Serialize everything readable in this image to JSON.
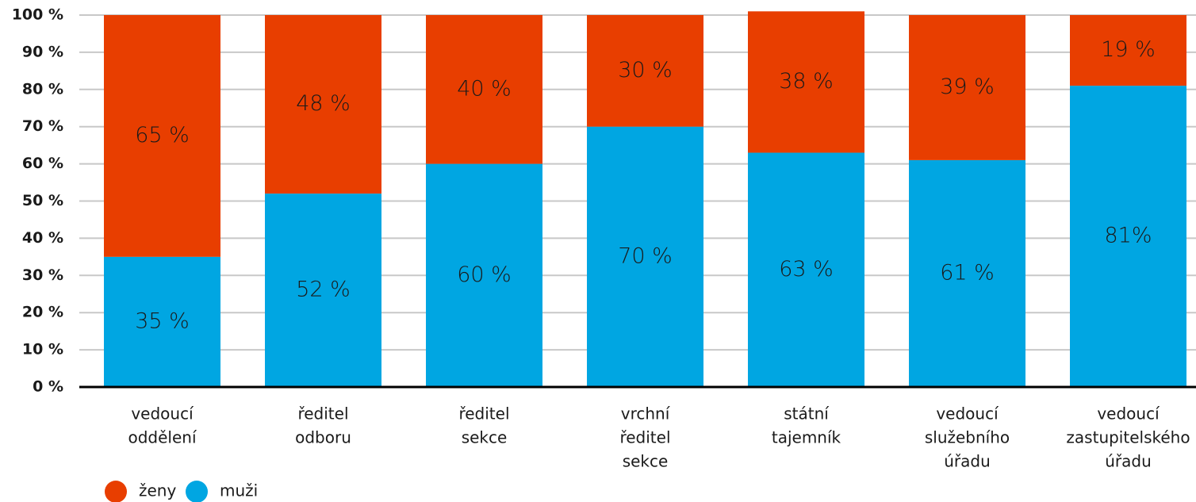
{
  "chart_data": {
    "type": "stacked_bar",
    "categories": [
      [
        "vedoucí",
        "oddělení"
      ],
      [
        "ředitel",
        "odboru"
      ],
      [
        "ředitel",
        "sekce"
      ],
      [
        "vrchní",
        "ředitel",
        "sekce"
      ],
      [
        "státní",
        "tajemník"
      ],
      [
        "vedoucí",
        "služebního",
        "úřadu"
      ],
      [
        "vedoucí",
        "zastupitelského",
        "úřadu"
      ]
    ],
    "series": [
      {
        "name": "muži",
        "color": "#00a6e2",
        "values": [
          35,
          52,
          60,
          70,
          63,
          61,
          81
        ],
        "value_labels": [
          "35 %",
          "52 %",
          "60 %",
          "70 %",
          "63 %",
          "61 %",
          "81%"
        ]
      },
      {
        "name": "ženy",
        "color": "#e83e00",
        "values": [
          65,
          48,
          40,
          30,
          38,
          39,
          19
        ],
        "value_labels": [
          "65 %",
          "48 %",
          "40 %",
          "30 %",
          "38 %",
          "39 %",
          "19 %"
        ]
      }
    ],
    "ylim": [
      0,
      100
    ],
    "yticks": [
      {
        "value": 0,
        "label": "0 %"
      },
      {
        "value": 10,
        "label": "10 %"
      },
      {
        "value": 20,
        "label": "20 %"
      },
      {
        "value": 30,
        "label": "30 %"
      },
      {
        "value": 40,
        "label": "40 %"
      },
      {
        "value": 50,
        "label": "50 %"
      },
      {
        "value": 60,
        "label": "60 %"
      },
      {
        "value": 70,
        "label": "70 %"
      },
      {
        "value": 80,
        "label": "80 %"
      },
      {
        "value": 90,
        "label": "90 %"
      },
      {
        "value": 100,
        "label": "100 %"
      }
    ],
    "grid": true
  }
}
